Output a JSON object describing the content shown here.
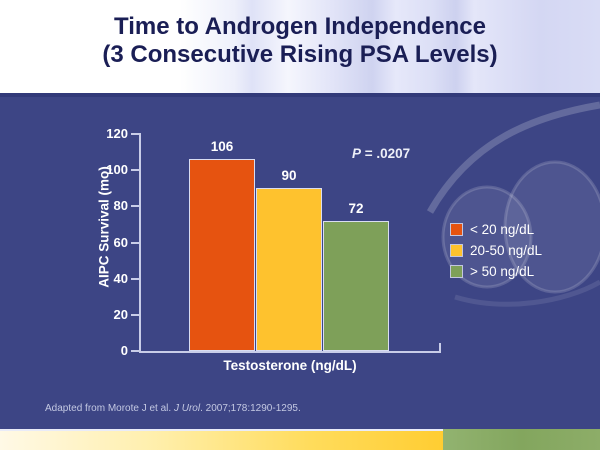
{
  "header": {
    "title_line1": "Time to Androgen Independence",
    "title_line2": "(3 Consecutive Rising PSA Levels)"
  },
  "chart_data": {
    "type": "bar",
    "title": "",
    "categories": [
      "< 20 ng/dL",
      "20-50 ng/dL",
      "> 50 ng/dL"
    ],
    "values": [
      106,
      90,
      72
    ],
    "bar_colors": [
      "#E65310",
      "#FEC22E",
      "#7EA059"
    ],
    "xlabel": "Testosterone (ng/dL)",
    "ylabel": "AIPC Survival (mo)",
    "ylim": [
      0,
      120
    ],
    "yticks": [
      0,
      20,
      40,
      60,
      80,
      100,
      120
    ],
    "grid": false,
    "legend_position": "right",
    "legend": [
      {
        "label": "< 20 ng/dL",
        "color": "#E65310"
      },
      {
        "label": "20-50 ng/dL",
        "color": "#FEC22E"
      },
      {
        "label": "> 50 ng/dL",
        "color": "#7EA059"
      }
    ],
    "annotation": {
      "p_label": "P",
      "p_rest": " = .0207"
    }
  },
  "footnote": {
    "prefix": "Adapted from Morote J et al. ",
    "journal_italic": "J Urol",
    "suffix": ". 2007;178:1290-1295."
  },
  "colors": {
    "slide_background": "#3D4585",
    "header_title": "#1A1E55",
    "axis": "#C9CDE8",
    "text_on_dark": "#FFFFFF",
    "footer_yellow": "#FFCD32",
    "footer_green": "#8BAD66"
  }
}
